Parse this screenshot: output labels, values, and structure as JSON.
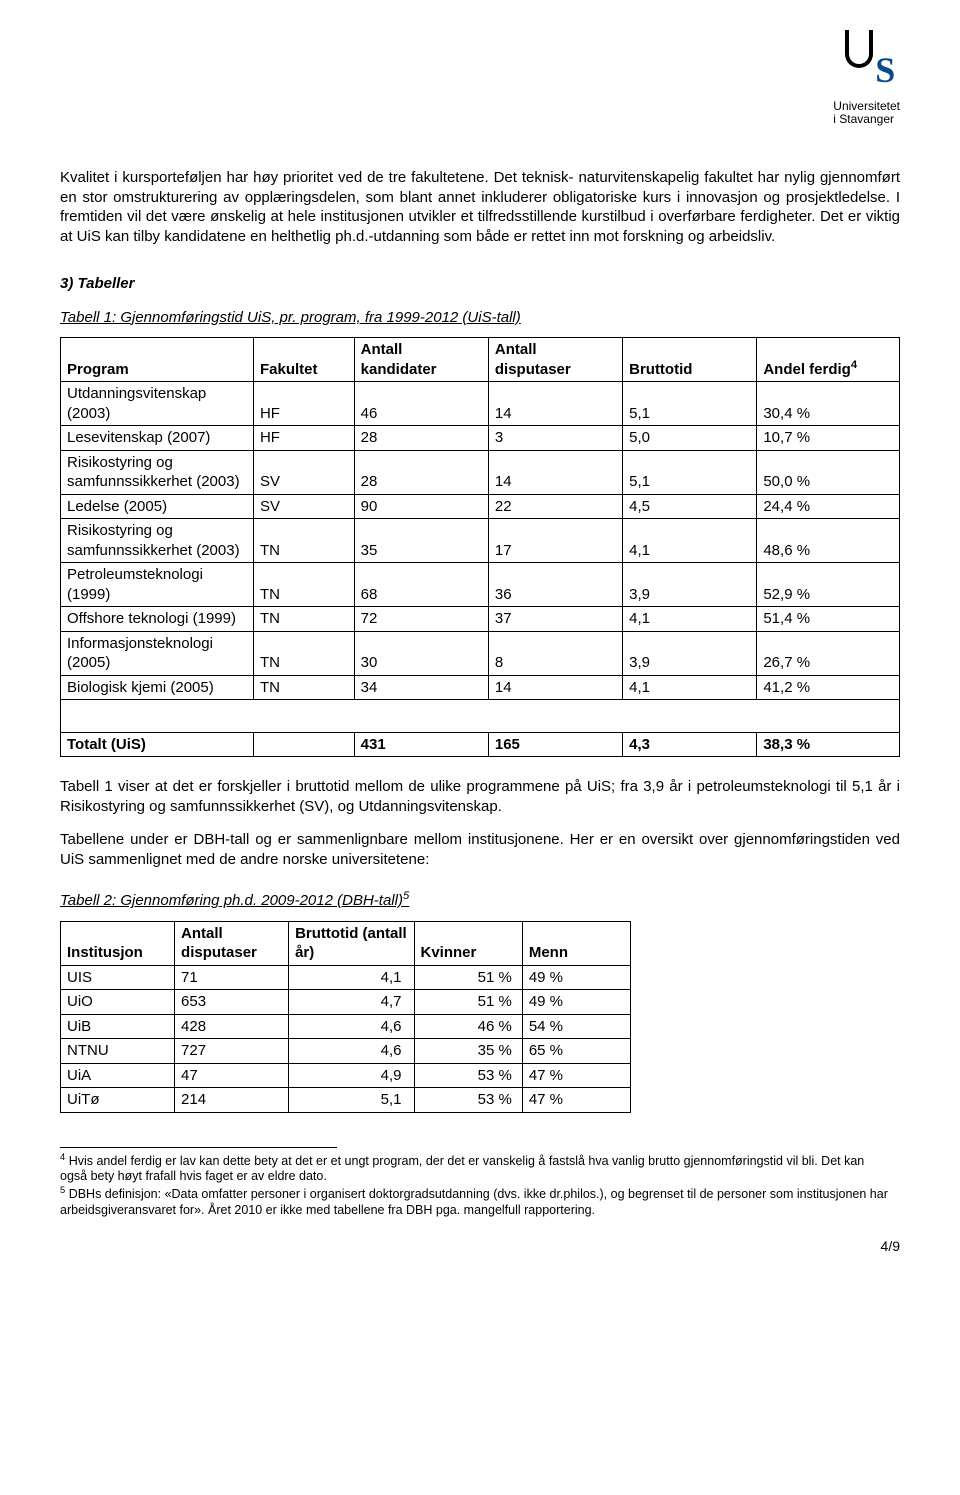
{
  "logo": {
    "line1": "Universitetet",
    "line2": "i Stavanger"
  },
  "paragraphs": {
    "p1": "Kvalitet i kursporteføljen har høy prioritet ved de tre fakultetene. Det teknisk- naturvitenskapelig fakultet har nylig gjennomført en stor omstrukturering av opplæringsdelen, som blant annet inkluderer obligatoriske kurs i innovasjon og prosjektledelse. I fremtiden vil det være ønskelig at hele institusjonen utvikler et tilfredsstillende kurstilbud i overførbare ferdigheter. Det er viktig at UiS kan tilby kandidatene en helthetlig ph.d.-utdanning som både er rettet inn mot forskning og arbeidsliv."
  },
  "section3": "3) Tabeller",
  "table1": {
    "caption": "Tabell 1: Gjennomføringstid UiS, pr. program, fra 1999-2012 (UiS-tall)",
    "headers": {
      "program": "Program",
      "fakultet": "Fakultet",
      "kandidater": "Antall kandidater",
      "disputaser": "Antall disputaser",
      "bruttotid": "Bruttotid",
      "andel": "Andel ferdig",
      "andel_sup": "4"
    },
    "rows": [
      {
        "program": "Utdanningsvitenskap (2003)",
        "fakultet": "HF",
        "kand": "46",
        "disp": "14",
        "brutto": "5,1",
        "andel": "30,4 %"
      },
      {
        "program": "Lesevitenskap (2007)",
        "fakultet": "HF",
        "kand": "28",
        "disp": "3",
        "brutto": "5,0",
        "andel": "10,7 %"
      },
      {
        "program": "Risikostyring og samfunnssikkerhet (2003)",
        "fakultet": "SV",
        "kand": "28",
        "disp": "14",
        "brutto": "5,1",
        "andel": "50,0 %"
      },
      {
        "program": "Ledelse (2005)",
        "fakultet": "SV",
        "kand": "90",
        "disp": "22",
        "brutto": "4,5",
        "andel": "24,4 %"
      },
      {
        "program": "Risikostyring og samfunnssikkerhet (2003)",
        "fakultet": "TN",
        "kand": "35",
        "disp": "17",
        "brutto": "4,1",
        "andel": "48,6 %"
      },
      {
        "program": "Petroleumsteknologi (1999)",
        "fakultet": "TN",
        "kand": "68",
        "disp": "36",
        "brutto": "3,9",
        "andel": "52,9 %"
      },
      {
        "program": "Offshore teknologi (1999)",
        "fakultet": "TN",
        "kand": "72",
        "disp": "37",
        "brutto": "4,1",
        "andel": "51,4 %"
      },
      {
        "program": "Informasjonsteknologi (2005)",
        "fakultet": "TN",
        "kand": "30",
        "disp": "8",
        "brutto": "3,9",
        "andel": "26,7 %"
      },
      {
        "program": "Biologisk kjemi (2005)",
        "fakultet": "TN",
        "kand": "34",
        "disp": "14",
        "brutto": "4,1",
        "andel": "41,2 %"
      }
    ],
    "total": {
      "label": "Totalt (UiS)",
      "kand": "431",
      "disp": "165",
      "brutto": "4,3",
      "andel": "38,3 %"
    },
    "col_widths_pct": [
      23,
      12,
      16,
      16,
      16,
      17
    ]
  },
  "mid": {
    "p2": "Tabell 1 viser at det er forskjeller i bruttotid mellom de ulike programmene på UiS; fra 3,9 år i petroleumsteknologi til 5,1 år i Risikostyring og samfunnssikkerhet (SV), og Utdanningsvitenskap.",
    "p3": "Tabellene under er DBH-tall og er sammenlignbare mellom institusjonene. Her er en oversikt over gjennomføringstiden ved UiS sammenlignet med de andre norske universitetene:"
  },
  "table2": {
    "caption": "Tabell 2: Gjennomføring ph.d. 2009-2012 (DBH-tall)",
    "caption_sup": "5",
    "headers": {
      "inst": "Institusjon",
      "disp": "Antall disputaser",
      "brutto": "Bruttotid (antall år)",
      "kvinner": "Kvinner",
      "menn": "Menn"
    },
    "rows": [
      {
        "inst": "UIS",
        "disp": "71",
        "brutto": "4,1",
        "kv": "51 %",
        "menn": "49 %"
      },
      {
        "inst": "UiO",
        "disp": "653",
        "brutto": "4,7",
        "kv": "51 %",
        "menn": "49 %"
      },
      {
        "inst": "UiB",
        "disp": "428",
        "brutto": "4,6",
        "kv": "46 %",
        "menn": "54 %"
      },
      {
        "inst": "NTNU",
        "disp": "727",
        "brutto": "4,6",
        "kv": "35 %",
        "menn": "65 %"
      },
      {
        "inst": "UiA",
        "disp": "47",
        "brutto": "4,9",
        "kv": "53 %",
        "menn": "47 %"
      },
      {
        "inst": "UiTø",
        "disp": "214",
        "brutto": "5,1",
        "kv": "53 %",
        "menn": "47 %"
      }
    ],
    "col_widths_pct": [
      20,
      20,
      22,
      19,
      19
    ]
  },
  "footnotes": {
    "fn4_sup": "4",
    "fn4": " Hvis andel ferdig er lav kan dette bety at det er et ungt program, der det er vanskelig å fastslå hva vanlig brutto gjennomføringstid vil bli. Det kan også bety høyt frafall hvis faget er av eldre dato.",
    "fn5_sup": "5",
    "fn5": " DBHs definisjon: «Data omfatter personer i organisert doktorgradsutdanning (dvs. ikke dr.philos.), og begrenset til de personer som institusjonen har arbeidsgiveransvaret for». Året 2010 er ikke med tabellene fra DBH pga. mangelfull rapportering."
  },
  "page_number": "4/9",
  "colors": {
    "text": "#000000",
    "bg": "#ffffff",
    "accent": "#0a4a8a",
    "border": "#000000"
  }
}
